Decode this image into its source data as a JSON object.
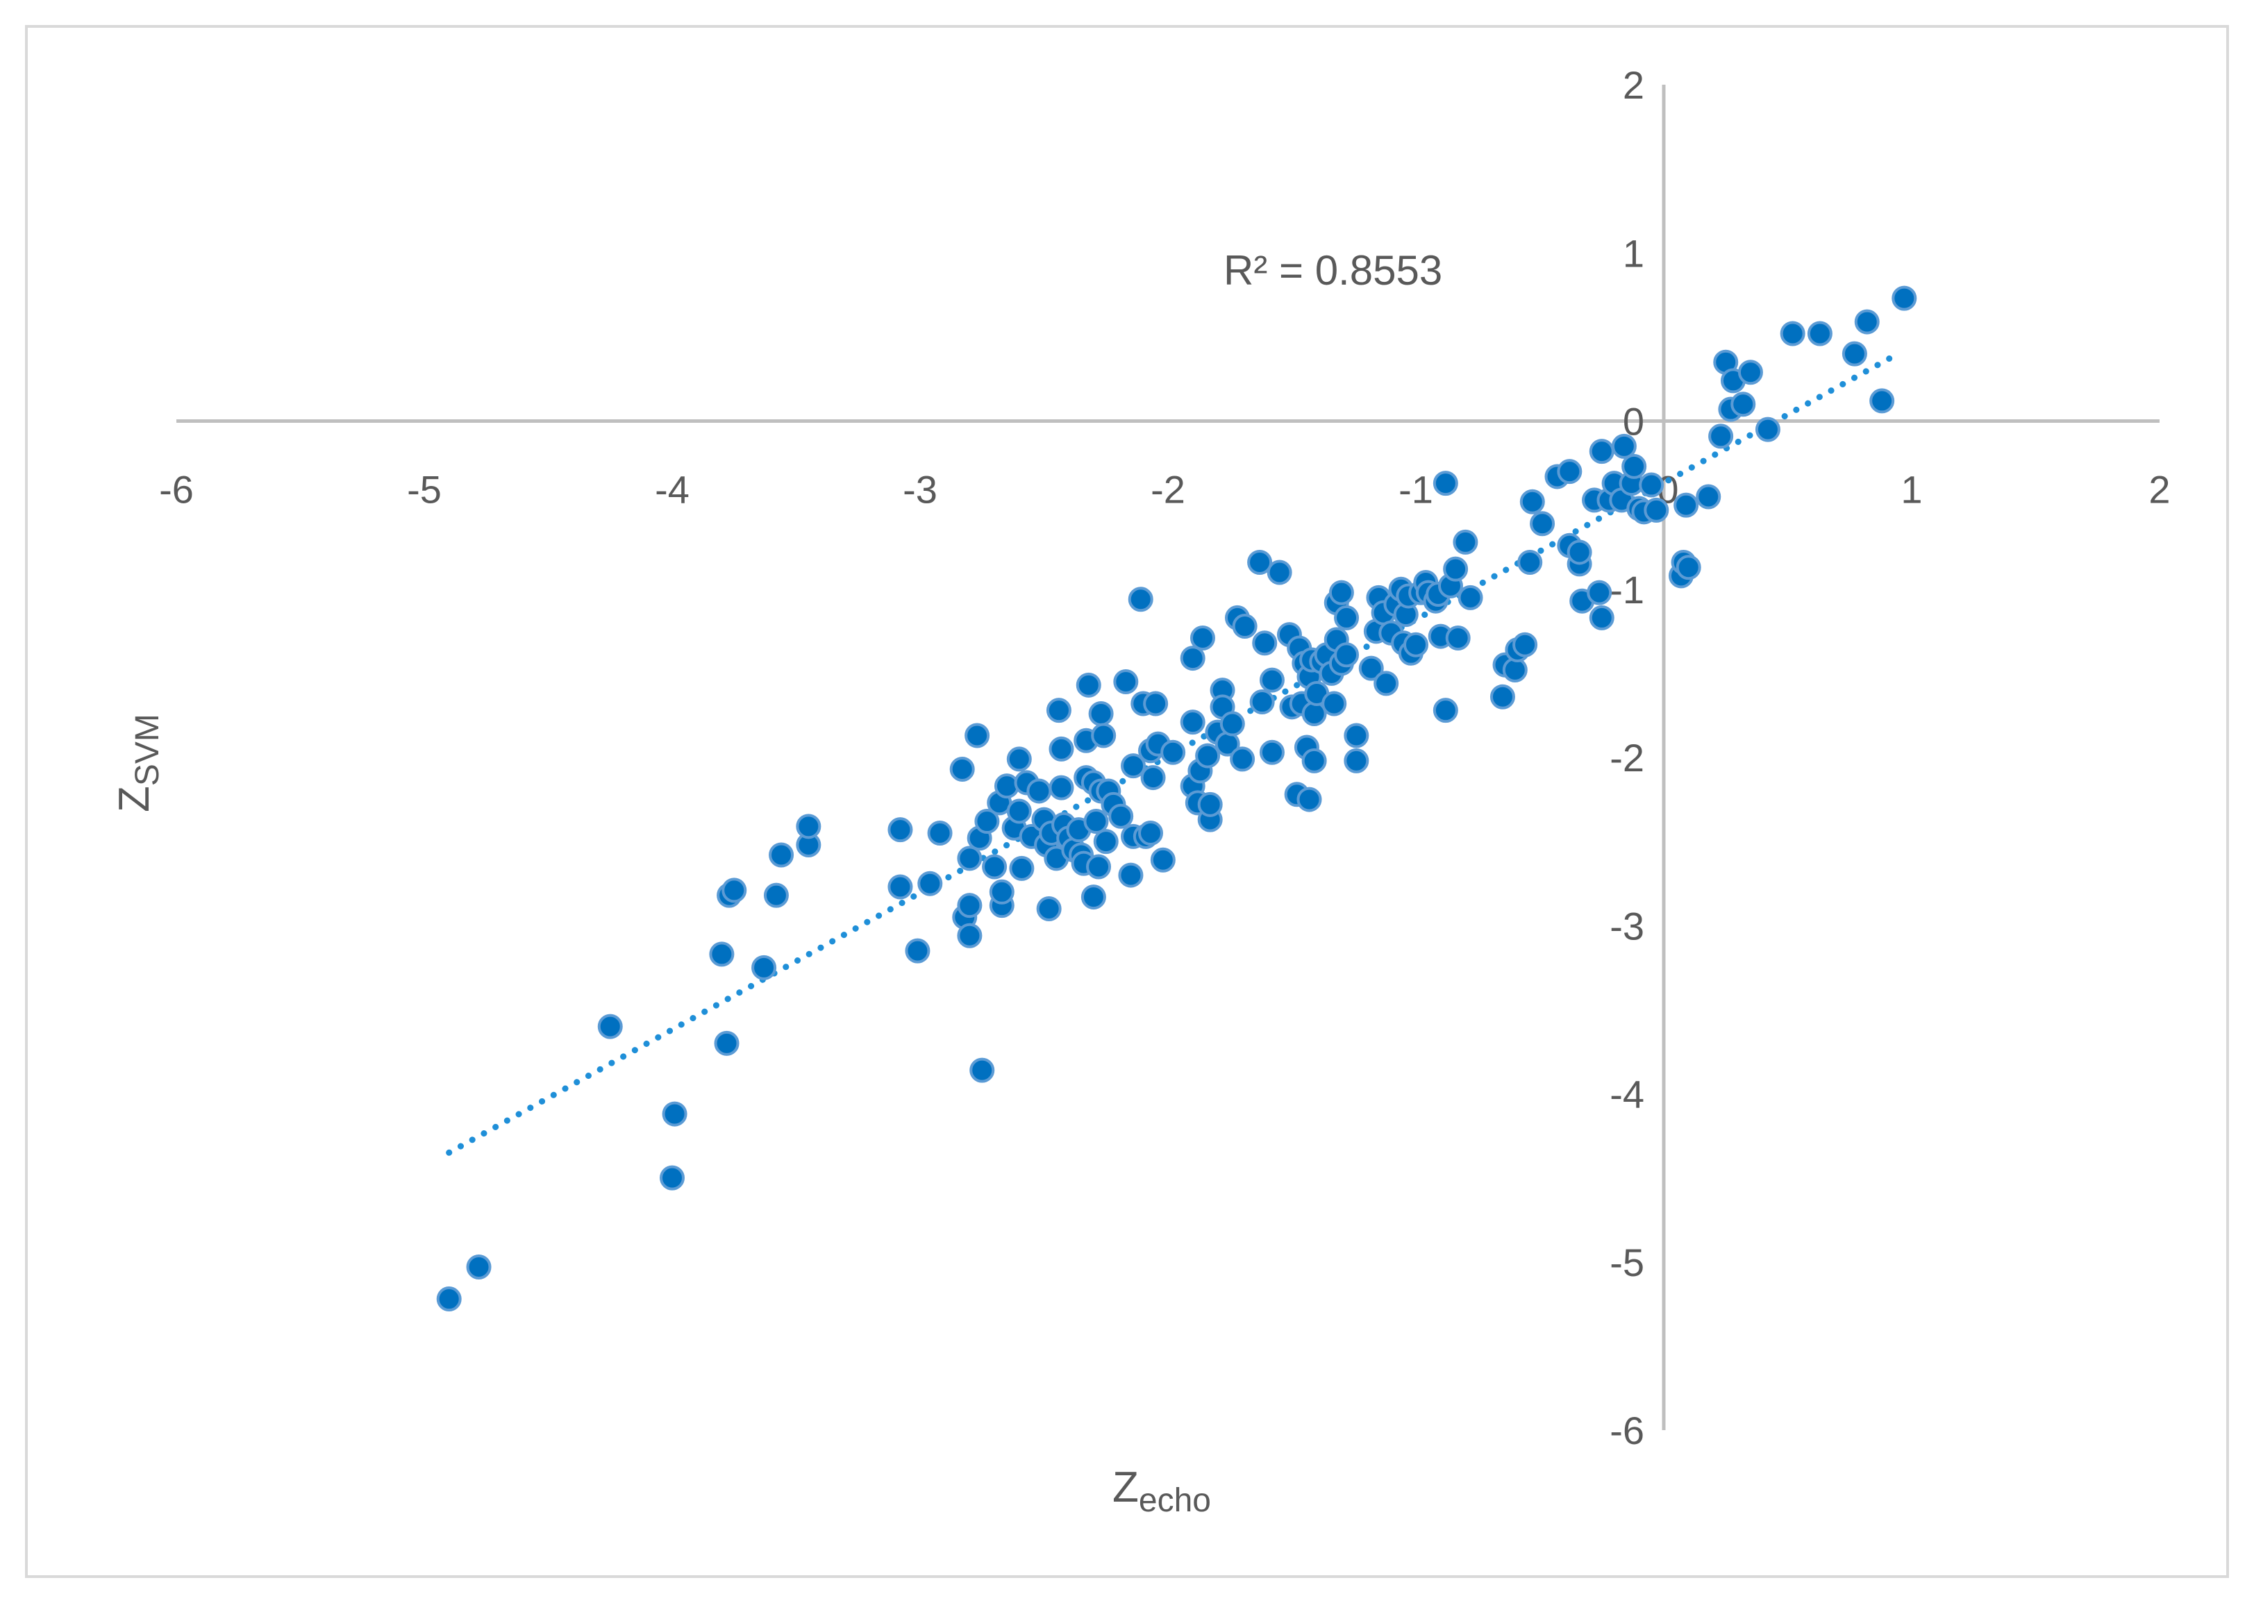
{
  "chart_data": {
    "type": "scatter",
    "title": "",
    "xlabel": "Z",
    "xlabel_subscript": "echo",
    "ylabel": "Z",
    "ylabel_subscript": "SVM",
    "xlim": [
      -6,
      2
    ],
    "ylim": [
      -6,
      2
    ],
    "xticks": [
      -6,
      -5,
      -4,
      -3,
      -2,
      -1,
      0,
      1,
      2
    ],
    "yticks": [
      -6,
      -5,
      -4,
      -3,
      -2,
      -1,
      0,
      1,
      2
    ],
    "xtick_labels": [
      "-6",
      "-5",
      "-4",
      "-3",
      "-2",
      "-1",
      "0",
      "1",
      "2"
    ],
    "ytick_labels": [
      "-6",
      "-5",
      "-4",
      "-3",
      "-2",
      "-1",
      "0",
      "1",
      "2"
    ],
    "grid": false,
    "legend": "none",
    "annotation": "R² = 0.8553",
    "marker_color": "#0070c0",
    "marker_edge_color": "#5b9bd5",
    "trendline_color": "#1f8fd8",
    "trendline": {
      "type": "linear",
      "style": "dotted",
      "x": [
        -4.9,
        0.92
      ],
      "y": [
        -4.35,
        0.38
      ]
    },
    "series": [
      {
        "points": [
          [
            -4.9,
            -5.22
          ],
          [
            -4.78,
            -5.03
          ],
          [
            -4.25,
            -3.6
          ],
          [
            -3.99,
            -4.12
          ],
          [
            -4.0,
            -4.5
          ],
          [
            -3.8,
            -3.17
          ],
          [
            -3.78,
            -3.7
          ],
          [
            -3.77,
            -2.82
          ],
          [
            -3.75,
            -2.79
          ],
          [
            -3.63,
            -3.25
          ],
          [
            -3.58,
            -2.82
          ],
          [
            -3.56,
            -2.58
          ],
          [
            -3.45,
            -2.52
          ],
          [
            -3.45,
            -2.41
          ],
          [
            -3.08,
            -2.77
          ],
          [
            -3.08,
            -2.43
          ],
          [
            -3.01,
            -3.15
          ],
          [
            -2.96,
            -2.75
          ],
          [
            -2.92,
            -2.45
          ],
          [
            -2.83,
            -2.07
          ],
          [
            -2.82,
            -2.95
          ],
          [
            -2.8,
            -3.06
          ],
          [
            -2.8,
            -2.88
          ],
          [
            -2.8,
            -2.6
          ],
          [
            -2.77,
            -1.87
          ],
          [
            -2.76,
            -2.48
          ],
          [
            -2.75,
            -3.86
          ],
          [
            -2.73,
            -2.38
          ],
          [
            -2.7,
            -2.65
          ],
          [
            -2.68,
            -2.27
          ],
          [
            -2.67,
            -2.88
          ],
          [
            -2.67,
            -2.8
          ],
          [
            -2.65,
            -2.17
          ],
          [
            -2.62,
            -2.42
          ],
          [
            -2.6,
            -2.01
          ],
          [
            -2.6,
            -2.32
          ],
          [
            -2.59,
            -2.66
          ],
          [
            -2.57,
            -2.15
          ],
          [
            -2.55,
            -2.47
          ],
          [
            -2.52,
            -2.2
          ],
          [
            -2.5,
            -2.37
          ],
          [
            -2.49,
            -2.52
          ],
          [
            -2.48,
            -2.9
          ],
          [
            -2.47,
            -2.45
          ],
          [
            -2.45,
            -2.6
          ],
          [
            -2.44,
            -1.72
          ],
          [
            -2.43,
            -2.18
          ],
          [
            -2.43,
            -1.95
          ],
          [
            -2.42,
            -2.4
          ],
          [
            -2.4,
            -2.48
          ],
          [
            -2.38,
            -2.55
          ],
          [
            -2.36,
            -2.43
          ],
          [
            -2.35,
            -2.58
          ],
          [
            -2.34,
            -2.63
          ],
          [
            -2.33,
            -2.12
          ],
          [
            -2.33,
            -1.9
          ],
          [
            -2.32,
            -1.57
          ],
          [
            -2.3,
            -2.15
          ],
          [
            -2.3,
            -2.83
          ],
          [
            -2.29,
            -2.38
          ],
          [
            -2.28,
            -2.65
          ],
          [
            -2.27,
            -2.2
          ],
          [
            -2.27,
            -1.74
          ],
          [
            -2.26,
            -1.87
          ],
          [
            -2.25,
            -2.5
          ],
          [
            -2.24,
            -2.2
          ],
          [
            -2.22,
            -2.28
          ],
          [
            -2.19,
            -2.35
          ],
          [
            -2.17,
            -1.55
          ],
          [
            -2.15,
            -2.7
          ],
          [
            -2.14,
            -2.05
          ],
          [
            -2.14,
            -2.47
          ],
          [
            -2.11,
            -1.06
          ],
          [
            -2.1,
            -1.68
          ],
          [
            -2.09,
            -2.47
          ],
          [
            -2.07,
            -1.96
          ],
          [
            -2.07,
            -2.45
          ],
          [
            -2.06,
            -2.12
          ],
          [
            -2.05,
            -1.68
          ],
          [
            -2.04,
            -1.92
          ],
          [
            -2.02,
            -2.61
          ],
          [
            -1.98,
            -1.97
          ],
          [
            -1.9,
            -1.79
          ],
          [
            -1.9,
            -1.41
          ],
          [
            -1.9,
            -2.17
          ],
          [
            -1.88,
            -2.27
          ],
          [
            -1.87,
            -2.08
          ],
          [
            -1.86,
            -1.29
          ],
          [
            -1.84,
            -1.99
          ],
          [
            -1.83,
            -2.37
          ],
          [
            -1.83,
            -2.28
          ],
          [
            -1.8,
            -1.85
          ],
          [
            -1.78,
            -1.6
          ],
          [
            -1.78,
            -1.7
          ],
          [
            -1.76,
            -1.92
          ],
          [
            -1.74,
            -1.8
          ],
          [
            -1.72,
            -1.17
          ],
          [
            -1.7,
            -2.01
          ],
          [
            -1.69,
            -1.22
          ],
          [
            -1.63,
            -0.84
          ],
          [
            -1.62,
            -1.67
          ],
          [
            -1.61,
            -1.32
          ],
          [
            -1.58,
            -1.54
          ],
          [
            -1.58,
            -1.97
          ],
          [
            -1.55,
            -0.9
          ],
          [
            -1.51,
            -1.27
          ],
          [
            -1.5,
            -1.7
          ],
          [
            -1.48,
            -2.22
          ],
          [
            -1.47,
            -1.35
          ],
          [
            -1.46,
            -1.68
          ],
          [
            -1.45,
            -1.44
          ],
          [
            -1.44,
            -1.94
          ],
          [
            -1.43,
            -2.25
          ],
          [
            -1.43,
            -1.52
          ],
          [
            -1.42,
            -1.42
          ],
          [
            -1.41,
            -2.02
          ],
          [
            -1.41,
            -1.74
          ],
          [
            -1.4,
            -1.62
          ],
          [
            -1.38,
            -1.43
          ],
          [
            -1.36,
            -1.39
          ],
          [
            -1.34,
            -1.5
          ],
          [
            -1.33,
            -1.68
          ],
          [
            -1.32,
            -1.3
          ],
          [
            -1.32,
            -1.08
          ],
          [
            -1.3,
            -1.02
          ],
          [
            -1.3,
            -1.44
          ],
          [
            -1.28,
            -1.39
          ],
          [
            -1.28,
            -1.17
          ],
          [
            -1.24,
            -1.87
          ],
          [
            -1.24,
            -2.02
          ],
          [
            -1.18,
            -1.47
          ],
          [
            -1.16,
            -1.25
          ],
          [
            -1.15,
            -1.05
          ],
          [
            -1.13,
            -1.14
          ],
          [
            -1.12,
            -1.56
          ],
          [
            -1.1,
            -1.26
          ],
          [
            -1.08,
            -1.09
          ],
          [
            -1.06,
            -1.0
          ],
          [
            -1.05,
            -1.32
          ],
          [
            -1.04,
            -1.15
          ],
          [
            -1.03,
            -1.04
          ],
          [
            -1.02,
            -1.38
          ],
          [
            -1.0,
            -1.33
          ],
          [
            -0.98,
            -1.02
          ],
          [
            -0.96,
            -0.96
          ],
          [
            -0.95,
            -1.02
          ],
          [
            -0.92,
            -1.07
          ],
          [
            -0.91,
            -1.03
          ],
          [
            -0.9,
            -1.28
          ],
          [
            -0.88,
            -0.37
          ],
          [
            -0.88,
            -1.72
          ],
          [
            -0.86,
            -0.98
          ],
          [
            -0.84,
            -0.88
          ],
          [
            -0.83,
            -1.29
          ],
          [
            -0.8,
            -0.72
          ],
          [
            -0.78,
            -1.05
          ],
          [
            -0.65,
            -1.64
          ],
          [
            -0.64,
            -1.45
          ],
          [
            -0.6,
            -1.48
          ],
          [
            -0.59,
            -1.36
          ],
          [
            -0.56,
            -1.33
          ],
          [
            -0.54,
            -0.84
          ],
          [
            -0.53,
            -0.48
          ],
          [
            -0.49,
            -0.61
          ],
          [
            -0.43,
            -0.33
          ],
          [
            -0.38,
            -0.3
          ],
          [
            -0.38,
            -0.74
          ],
          [
            -0.34,
            -0.85
          ],
          [
            -0.34,
            -0.78
          ],
          [
            -0.33,
            -1.07
          ],
          [
            -0.28,
            -0.47
          ],
          [
            -0.26,
            -1.02
          ],
          [
            -0.25,
            -1.17
          ],
          [
            -0.25,
            -0.18
          ],
          [
            -0.22,
            -0.47
          ],
          [
            -0.2,
            -0.37
          ],
          [
            -0.17,
            -0.47
          ],
          [
            -0.16,
            -0.15
          ],
          [
            -0.13,
            -0.37
          ],
          [
            -0.12,
            -0.27
          ],
          [
            -0.1,
            -0.52
          ],
          [
            -0.08,
            -0.54
          ],
          [
            -0.05,
            -0.38
          ],
          [
            -0.03,
            -0.53
          ],
          [
            0.07,
            -0.92
          ],
          [
            0.08,
            -0.84
          ],
          [
            0.09,
            -0.5
          ],
          [
            0.1,
            -0.87
          ],
          [
            0.18,
            -0.45
          ],
          [
            0.23,
            -0.09
          ],
          [
            0.25,
            0.35
          ],
          [
            0.27,
            0.07
          ],
          [
            0.28,
            0.24
          ],
          [
            0.32,
            0.1
          ],
          [
            0.35,
            0.29
          ],
          [
            0.42,
            -0.05
          ],
          [
            0.52,
            0.52
          ],
          [
            0.63,
            0.52
          ],
          [
            0.77,
            0.4
          ],
          [
            0.82,
            0.59
          ],
          [
            0.88,
            0.12
          ],
          [
            0.97,
            0.73
          ]
        ]
      }
    ]
  }
}
